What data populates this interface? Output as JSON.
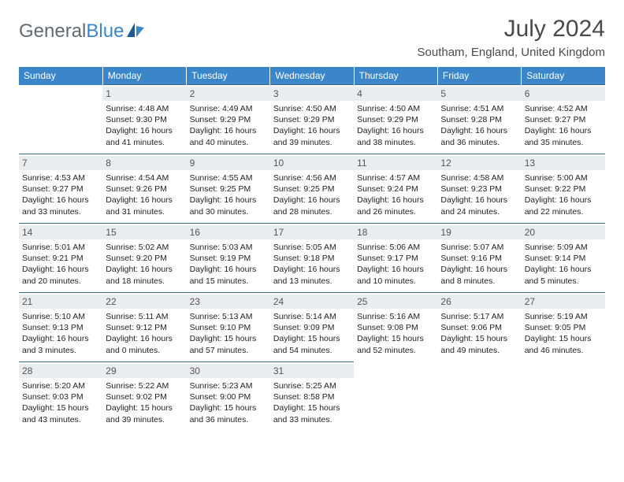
{
  "logo": {
    "text1": "General",
    "text2": "Blue"
  },
  "title": "July 2024",
  "location": "Southam, England, United Kingdom",
  "colors": {
    "header_bg": "#3a86c8",
    "header_text": "#ffffff",
    "border": "#3a6a9a",
    "daynum_bg": "#e9edf0",
    "logo_gray": "#5f6b74",
    "logo_blue": "#3a86c8",
    "title_color": "#4a4a4a"
  },
  "weekdays": [
    "Sunday",
    "Monday",
    "Tuesday",
    "Wednesday",
    "Thursday",
    "Friday",
    "Saturday"
  ],
  "weeks": [
    [
      null,
      {
        "n": "1",
        "sr": "Sunrise: 4:48 AM",
        "ss": "Sunset: 9:30 PM",
        "dl": "Daylight: 16 hours and 41 minutes."
      },
      {
        "n": "2",
        "sr": "Sunrise: 4:49 AM",
        "ss": "Sunset: 9:29 PM",
        "dl": "Daylight: 16 hours and 40 minutes."
      },
      {
        "n": "3",
        "sr": "Sunrise: 4:50 AM",
        "ss": "Sunset: 9:29 PM",
        "dl": "Daylight: 16 hours and 39 minutes."
      },
      {
        "n": "4",
        "sr": "Sunrise: 4:50 AM",
        "ss": "Sunset: 9:29 PM",
        "dl": "Daylight: 16 hours and 38 minutes."
      },
      {
        "n": "5",
        "sr": "Sunrise: 4:51 AM",
        "ss": "Sunset: 9:28 PM",
        "dl": "Daylight: 16 hours and 36 minutes."
      },
      {
        "n": "6",
        "sr": "Sunrise: 4:52 AM",
        "ss": "Sunset: 9:27 PM",
        "dl": "Daylight: 16 hours and 35 minutes."
      }
    ],
    [
      {
        "n": "7",
        "sr": "Sunrise: 4:53 AM",
        "ss": "Sunset: 9:27 PM",
        "dl": "Daylight: 16 hours and 33 minutes."
      },
      {
        "n": "8",
        "sr": "Sunrise: 4:54 AM",
        "ss": "Sunset: 9:26 PM",
        "dl": "Daylight: 16 hours and 31 minutes."
      },
      {
        "n": "9",
        "sr": "Sunrise: 4:55 AM",
        "ss": "Sunset: 9:25 PM",
        "dl": "Daylight: 16 hours and 30 minutes."
      },
      {
        "n": "10",
        "sr": "Sunrise: 4:56 AM",
        "ss": "Sunset: 9:25 PM",
        "dl": "Daylight: 16 hours and 28 minutes."
      },
      {
        "n": "11",
        "sr": "Sunrise: 4:57 AM",
        "ss": "Sunset: 9:24 PM",
        "dl": "Daylight: 16 hours and 26 minutes."
      },
      {
        "n": "12",
        "sr": "Sunrise: 4:58 AM",
        "ss": "Sunset: 9:23 PM",
        "dl": "Daylight: 16 hours and 24 minutes."
      },
      {
        "n": "13",
        "sr": "Sunrise: 5:00 AM",
        "ss": "Sunset: 9:22 PM",
        "dl": "Daylight: 16 hours and 22 minutes."
      }
    ],
    [
      {
        "n": "14",
        "sr": "Sunrise: 5:01 AM",
        "ss": "Sunset: 9:21 PM",
        "dl": "Daylight: 16 hours and 20 minutes."
      },
      {
        "n": "15",
        "sr": "Sunrise: 5:02 AM",
        "ss": "Sunset: 9:20 PM",
        "dl": "Daylight: 16 hours and 18 minutes."
      },
      {
        "n": "16",
        "sr": "Sunrise: 5:03 AM",
        "ss": "Sunset: 9:19 PM",
        "dl": "Daylight: 16 hours and 15 minutes."
      },
      {
        "n": "17",
        "sr": "Sunrise: 5:05 AM",
        "ss": "Sunset: 9:18 PM",
        "dl": "Daylight: 16 hours and 13 minutes."
      },
      {
        "n": "18",
        "sr": "Sunrise: 5:06 AM",
        "ss": "Sunset: 9:17 PM",
        "dl": "Daylight: 16 hours and 10 minutes."
      },
      {
        "n": "19",
        "sr": "Sunrise: 5:07 AM",
        "ss": "Sunset: 9:16 PM",
        "dl": "Daylight: 16 hours and 8 minutes."
      },
      {
        "n": "20",
        "sr": "Sunrise: 5:09 AM",
        "ss": "Sunset: 9:14 PM",
        "dl": "Daylight: 16 hours and 5 minutes."
      }
    ],
    [
      {
        "n": "21",
        "sr": "Sunrise: 5:10 AM",
        "ss": "Sunset: 9:13 PM",
        "dl": "Daylight: 16 hours and 3 minutes."
      },
      {
        "n": "22",
        "sr": "Sunrise: 5:11 AM",
        "ss": "Sunset: 9:12 PM",
        "dl": "Daylight: 16 hours and 0 minutes."
      },
      {
        "n": "23",
        "sr": "Sunrise: 5:13 AM",
        "ss": "Sunset: 9:10 PM",
        "dl": "Daylight: 15 hours and 57 minutes."
      },
      {
        "n": "24",
        "sr": "Sunrise: 5:14 AM",
        "ss": "Sunset: 9:09 PM",
        "dl": "Daylight: 15 hours and 54 minutes."
      },
      {
        "n": "25",
        "sr": "Sunrise: 5:16 AM",
        "ss": "Sunset: 9:08 PM",
        "dl": "Daylight: 15 hours and 52 minutes."
      },
      {
        "n": "26",
        "sr": "Sunrise: 5:17 AM",
        "ss": "Sunset: 9:06 PM",
        "dl": "Daylight: 15 hours and 49 minutes."
      },
      {
        "n": "27",
        "sr": "Sunrise: 5:19 AM",
        "ss": "Sunset: 9:05 PM",
        "dl": "Daylight: 15 hours and 46 minutes."
      }
    ],
    [
      {
        "n": "28",
        "sr": "Sunrise: 5:20 AM",
        "ss": "Sunset: 9:03 PM",
        "dl": "Daylight: 15 hours and 43 minutes."
      },
      {
        "n": "29",
        "sr": "Sunrise: 5:22 AM",
        "ss": "Sunset: 9:02 PM",
        "dl": "Daylight: 15 hours and 39 minutes."
      },
      {
        "n": "30",
        "sr": "Sunrise: 5:23 AM",
        "ss": "Sunset: 9:00 PM",
        "dl": "Daylight: 15 hours and 36 minutes."
      },
      {
        "n": "31",
        "sr": "Sunrise: 5:25 AM",
        "ss": "Sunset: 8:58 PM",
        "dl": "Daylight: 15 hours and 33 minutes."
      },
      null,
      null,
      null
    ]
  ]
}
